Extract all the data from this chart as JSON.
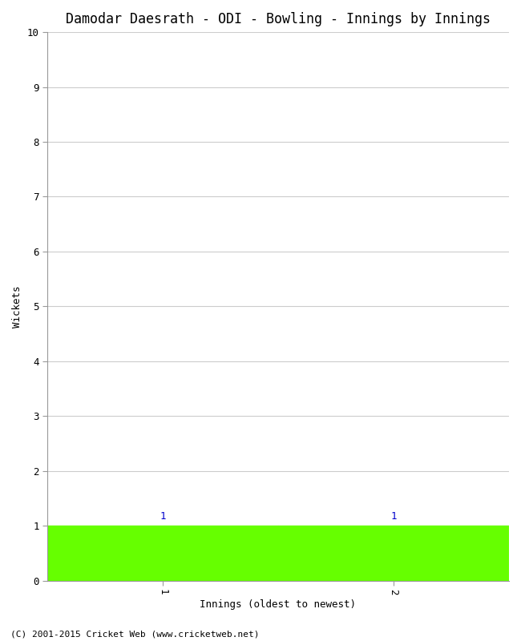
{
  "title": "Damodar Daesrath - ODI - Bowling - Innings by Innings",
  "xlabel": "Innings (oldest to newest)",
  "ylabel": "Wickets",
  "innings": [
    1,
    2
  ],
  "wickets": [
    1,
    1
  ],
  "bar_color": "#66ff00",
  "bar_labels": [
    "1",
    "1"
  ],
  "bar_label_color": "#0000cc",
  "ylim": [
    0,
    10
  ],
  "yticks": [
    0,
    1,
    2,
    3,
    4,
    5,
    6,
    7,
    8,
    9,
    10
  ],
  "xticks": [
    1,
    2
  ],
  "xticklabels": [
    "1",
    "2"
  ],
  "footer": "(C) 2001-2015 Cricket Web (www.cricketweb.net)",
  "background_color": "#ffffff",
  "grid_color": "#cccccc",
  "title_fontsize": 12,
  "label_fontsize": 9,
  "tick_fontsize": 9,
  "bar_label_fontsize": 9,
  "bar_width": 1.0
}
